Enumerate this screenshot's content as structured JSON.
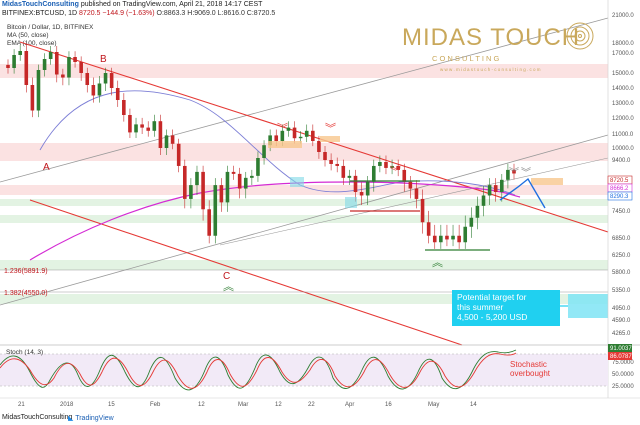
{
  "header": {
    "publisher": "MidasTouchConsulting",
    "published_text": " published on TradingView.com, April 21, 2018 14:17 CEST"
  },
  "ticker": {
    "symbol": "BITFINEX:BTCUSD, 1D",
    "last": "8720.5",
    "change": "−144.9 (−1.63%)",
    "ohlc": "O:8863.3 H:9069.0 L:8616.0 C:8720.5"
  },
  "legend": {
    "title": "Bitcoin / Dollar, 1D, BITFINEX",
    "ma": "MA (50, close)",
    "ema": "EMA (100, close)"
  },
  "brand": {
    "name": "MIDAS TOUCH",
    "sub": "C O N S U L T I N G",
    "url": "w w w . m i d a s t o u c h - c o n s u l t i n g . c o m",
    "color": "#c9a85b"
  },
  "colors": {
    "up": "#2e7d32",
    "down": "#c62828",
    "trend": "#e53935",
    "ma": "#7d7fd6",
    "ema": "#d42bd4",
    "fib": "#c0161c",
    "arrow_blue": "#1f6fe0",
    "target_box": "#20d0f0"
  },
  "annotations": {
    "A": "A",
    "B": "B",
    "C": "C",
    "fib1": "1.236(5891.9)",
    "fib2": "1.382(4550.0)",
    "target_text": "Potential target for\nthis summer\n4,500 - 5,200 USD",
    "stoch_note": "Stochastic\noverbought",
    "stoch_label": "Stoch (14, 3)"
  },
  "chart_data": {
    "type": "candlestick",
    "symbol": "BTCUSD",
    "exchange": "BITFINEX",
    "interval": "1D",
    "x_labels": [
      "21",
      "2018",
      "15",
      "Feb",
      "12",
      "Mar",
      "12",
      "22",
      "Apr",
      "16",
      "May",
      "14"
    ],
    "y_ticks": [
      21000,
      18000,
      17000,
      15000,
      14000,
      13000,
      12000,
      11000,
      10000,
      9400,
      8290.3,
      7450,
      6850,
      6250,
      5800,
      5350,
      4950,
      4590,
      4265
    ],
    "right_labels": [
      {
        "value": 8720.5,
        "text": "8720.5",
        "color": "#c62828"
      },
      {
        "value": 8666.2,
        "text": "8666.2",
        "color": "#d42bd4"
      },
      {
        "value": 8290.3,
        "text": "8290.3",
        "color": "#1f6fe0"
      }
    ],
    "closes": [
      15500,
      16800,
      17200,
      14200,
      12500,
      15300,
      16400,
      17100,
      14900,
      14700,
      16600,
      16100,
      15000,
      14200,
      13500,
      14300,
      15000,
      14000,
      13200,
      12200,
      11100,
      11600,
      11400,
      11200,
      11800,
      10000,
      10900,
      10300,
      9100,
      7800,
      8200,
      8800,
      7500,
      6900,
      8200,
      7700,
      8800,
      8700,
      8100,
      8500,
      8600,
      9500,
      10200,
      10900,
      10500,
      11200,
      11400,
      10700,
      10800,
      11200,
      10500,
      9800,
      9400,
      9200,
      9100,
      8500,
      8600,
      8000,
      7900,
      8300,
      9100,
      9300,
      9000,
      9100,
      8900,
      8300,
      8100,
      7800,
      7200,
      6900,
      6700,
      6900,
      6800,
      6900,
      6700,
      7100,
      7300,
      7600,
      7900,
      8200,
      8000,
      8400,
      8900,
      8720
    ],
    "stochastic": {
      "name": "Stoch (14, 3)",
      "range": [
        0,
        100
      ],
      "levels": [
        20,
        80
      ],
      "last_k": 91.0037,
      "last_d": 86.0787,
      "ticks": [
        75,
        50,
        25
      ]
    },
    "fib_extensions": [
      {
        "ratio": 1.236,
        "price": 5891.9
      },
      {
        "ratio": 1.382,
        "price": 4550.0
      }
    ],
    "target_range": [
      4500,
      5200
    ]
  }
}
